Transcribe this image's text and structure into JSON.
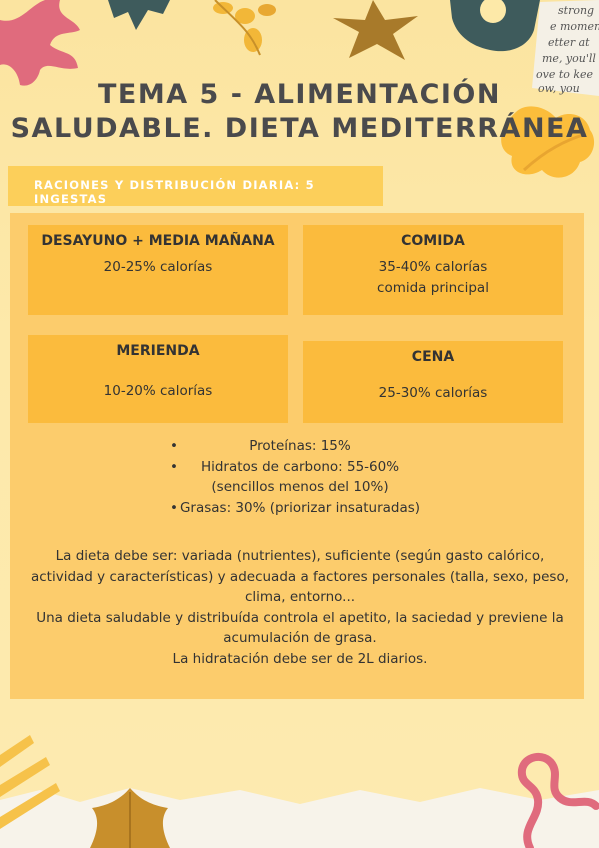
{
  "title": {
    "line1": "TEMA 5 - ALIMENTACIÓN",
    "line2": "SALUDABLE. DIETA MEDITERRÁNEA"
  },
  "subheader": "RACIONES Y DISTRIBUCIÓN DIARIA: 5 INGESTAS",
  "meals": {
    "desayuno": {
      "title": "DESAYUNO + MEDIA MAÑANA",
      "value": "20-25% calorías"
    },
    "comida": {
      "title": "COMIDA",
      "value": "35-40% calorías",
      "note": "comida principal"
    },
    "merienda": {
      "title": "MERIENDA",
      "value": "10-20% calorías"
    },
    "cena": {
      "title": "CENA",
      "value": "25-30% calorías"
    }
  },
  "bullets": {
    "proteinas": "Proteínas: 15%",
    "hidratos": "Hidratos de carbono: 55-60%",
    "hidratos_note": "(sencillos menos del 10%)",
    "grasas": "Grasas: 30% (priorizar insaturadas)",
    "marker": "•"
  },
  "paragraph": {
    "line1": "La dieta debe ser: variada (nutrientes), suficiente (según gasto calórico,",
    "line2": "actividad y características) y adecuada a factores personales (talla, sexo, peso,",
    "line3": "clima, entorno...",
    "line4": "Una dieta saludable y distribuída controla el apetito, la saciedad y previene la",
    "line5": "acumulación de grasa.",
    "line6": "La hidratación debe ser de 2L diarios."
  },
  "decor": {
    "letter_text": [
      "strong",
      "e momen",
      "etter at",
      "me, you'll",
      "ove to kee",
      "ow, you"
    ]
  },
  "colors": {
    "background": "#fde9a8",
    "panel": "#fccc6c",
    "box": "#fbbb3d",
    "subheader": "#fccf5a",
    "title": "#4a4a4c",
    "pink": "#e06b7d",
    "teal": "#3e5b5c",
    "mustard": "#d8a53a"
  }
}
